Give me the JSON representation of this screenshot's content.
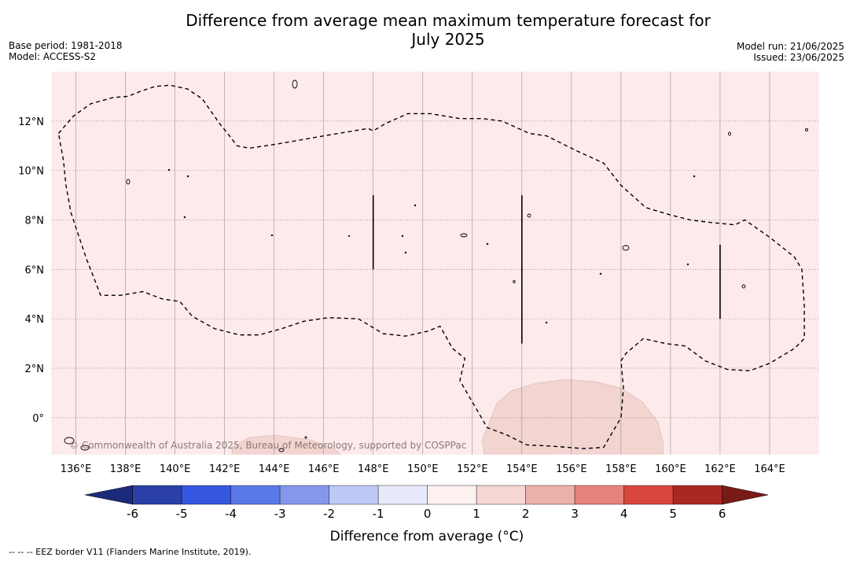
{
  "title_line1": "Difference from average mean maximum temperature forecast for",
  "title_line2": "July 2025",
  "base_period": "Base period: 1981-2018",
  "model": "Model: ACCESS-S2",
  "model_run": "Model run: 21/06/2025",
  "issued": "Issued: 23/06/2025",
  "copyright": "© Commonwealth of Australia 2025, Bureau of Meteorology, supported by COSPPac",
  "footnote": "-- -- -- EEZ border V11 (Flanders Marine Institute, 2019).",
  "map": {
    "lon_min": 135.0,
    "lon_max": 166.0,
    "lat_min": -1.5,
    "lat_max": 14.0,
    "lon_ticks": [
      "136°E",
      "138°E",
      "140°E",
      "142°E",
      "144°E",
      "146°E",
      "148°E",
      "150°E",
      "152°E",
      "154°E",
      "156°E",
      "158°E",
      "160°E",
      "162°E",
      "164°E"
    ],
    "lon_values": [
      136,
      138,
      140,
      142,
      144,
      146,
      148,
      150,
      152,
      154,
      156,
      158,
      160,
      162,
      164
    ],
    "lat_ticks": [
      "12°N",
      "10°N",
      "8°N",
      "6°N",
      "4°N",
      "2°N",
      "0°"
    ],
    "lat_values": [
      12,
      10,
      8,
      6,
      4,
      2,
      0
    ],
    "background_color": "#fcebea",
    "anomaly_zone_color": "#f2d4d1"
  },
  "colorbar": {
    "title": "Difference from average (°C)",
    "labels": [
      "-6",
      "-5",
      "-4",
      "-3",
      "-2",
      "-1",
      "0",
      "1",
      "2",
      "3",
      "4",
      "5",
      "6"
    ],
    "colors": [
      "#2a40a8",
      "#3556e0",
      "#5a78e6",
      "#8597ec",
      "#bfc8f4",
      "#e6eafb",
      "#fdf1f0",
      "#f5d6d3",
      "#ecb0aa",
      "#e5837c",
      "#d9463e",
      "#ab2822"
    ],
    "under_color": "#1b2a7a",
    "over_color": "#7a1a16"
  }
}
